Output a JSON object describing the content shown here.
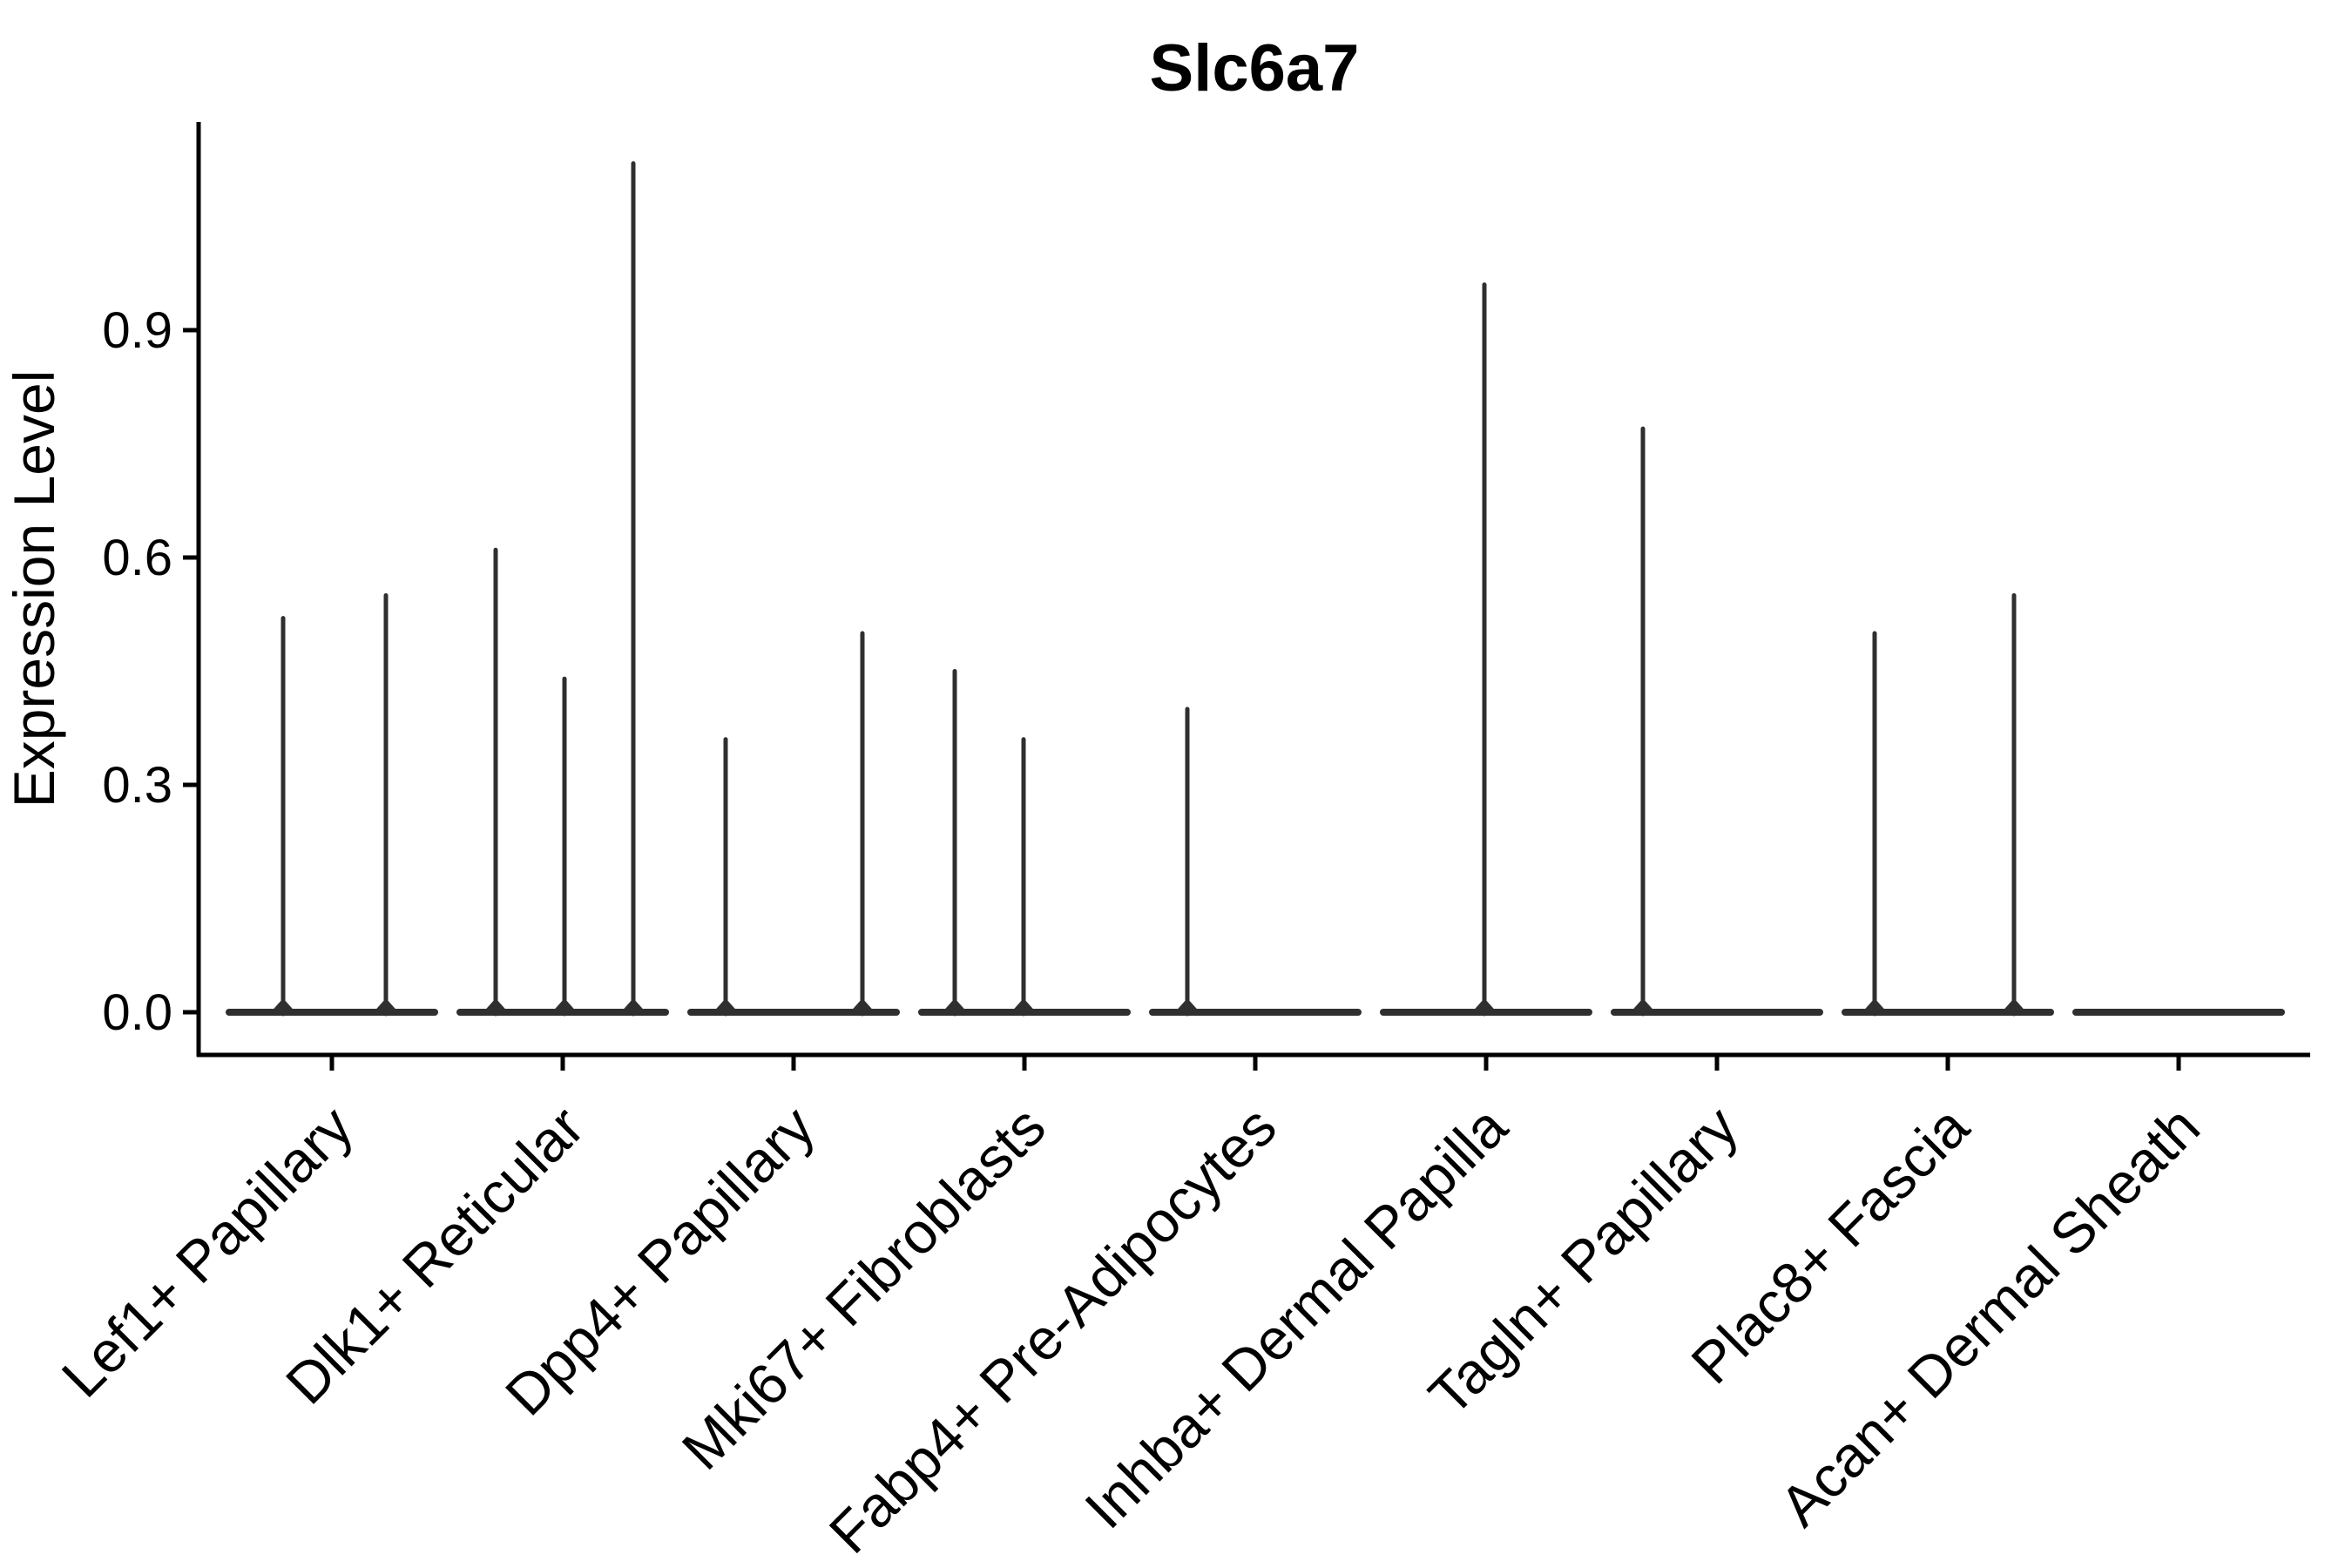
{
  "title": "Slc6a7",
  "axes": {
    "ylabel": "Expression Level",
    "ytick_labels": [
      "0.0",
      "0.3",
      "0.6",
      "0.9"
    ]
  },
  "chart_data": {
    "type": "violin",
    "title": "Slc6a7",
    "xlabel": "",
    "ylabel": "Expression Level",
    "yticks": [
      0.0,
      0.3,
      0.6,
      0.9
    ],
    "ylim": [
      -0.056,
      1.175
    ],
    "grid": false,
    "legend": "none",
    "note": "Collapsed violins: each category shows a flat density baseline at expression 0 with thin vertical density spikes at the listed values; spike_dx is the horizontal offset (px of 2700-wide canvas) of each spike from the category center, slot step 265 px.",
    "categories": [
      "Lef1+ Papillary",
      "Dlk1+ Reticular",
      "Dpp4+ Papillary",
      "Mki67+ Fibroblasts",
      "Fabp4+ Pre-Adipocytes",
      "Inhba+ Dermal Papilla",
      "Tagln+ Papillary",
      "Plac8+ Fascia",
      "Acan+ Dermal Sheath"
    ],
    "series": [
      {
        "name": "Lef1+ Papillary",
        "baseline_value": 0,
        "spikes": [
          {
            "dx": -56,
            "value": 0.52
          },
          {
            "dx": 62,
            "value": 0.55
          }
        ]
      },
      {
        "name": "Dlk1+ Reticular",
        "baseline_value": 0,
        "spikes": [
          {
            "dx": -77,
            "value": 0.61
          },
          {
            "dx": 2,
            "value": 0.44
          },
          {
            "dx": 81,
            "value": 1.12
          }
        ]
      },
      {
        "name": "Dpp4+ Papillary",
        "baseline_value": 0,
        "spikes": [
          {
            "dx": -78,
            "value": 0.36
          },
          {
            "dx": 79,
            "value": 0.5
          }
        ]
      },
      {
        "name": "Mki67+ Fibroblasts",
        "baseline_value": 0,
        "spikes": [
          {
            "dx": -80,
            "value": 0.45
          },
          {
            "dx": -1,
            "value": 0.36
          }
        ]
      },
      {
        "name": "Fabp4+ Pre-Adipocytes",
        "baseline_value": 0,
        "spikes": [
          {
            "dx": -78,
            "value": 0.4
          }
        ]
      },
      {
        "name": "Inhba+ Dermal Papilla",
        "baseline_value": 0,
        "spikes": [
          {
            "dx": -2,
            "value": 0.96
          }
        ]
      },
      {
        "name": "Tagln+ Papillary",
        "baseline_value": 0,
        "spikes": [
          {
            "dx": -85,
            "value": 0.77
          }
        ]
      },
      {
        "name": "Plac8+ Fascia",
        "baseline_value": 0,
        "spikes": [
          {
            "dx": -84,
            "value": 0.5
          },
          {
            "dx": 76,
            "value": 0.55
          }
        ]
      },
      {
        "name": "Acan+ Dermal Sheath",
        "baseline_value": 0,
        "spikes": []
      }
    ],
    "colors": {
      "violin_stroke": "#2f2f2f",
      "spine": "#000000",
      "text": "#000000",
      "background": "#ffffff"
    }
  }
}
